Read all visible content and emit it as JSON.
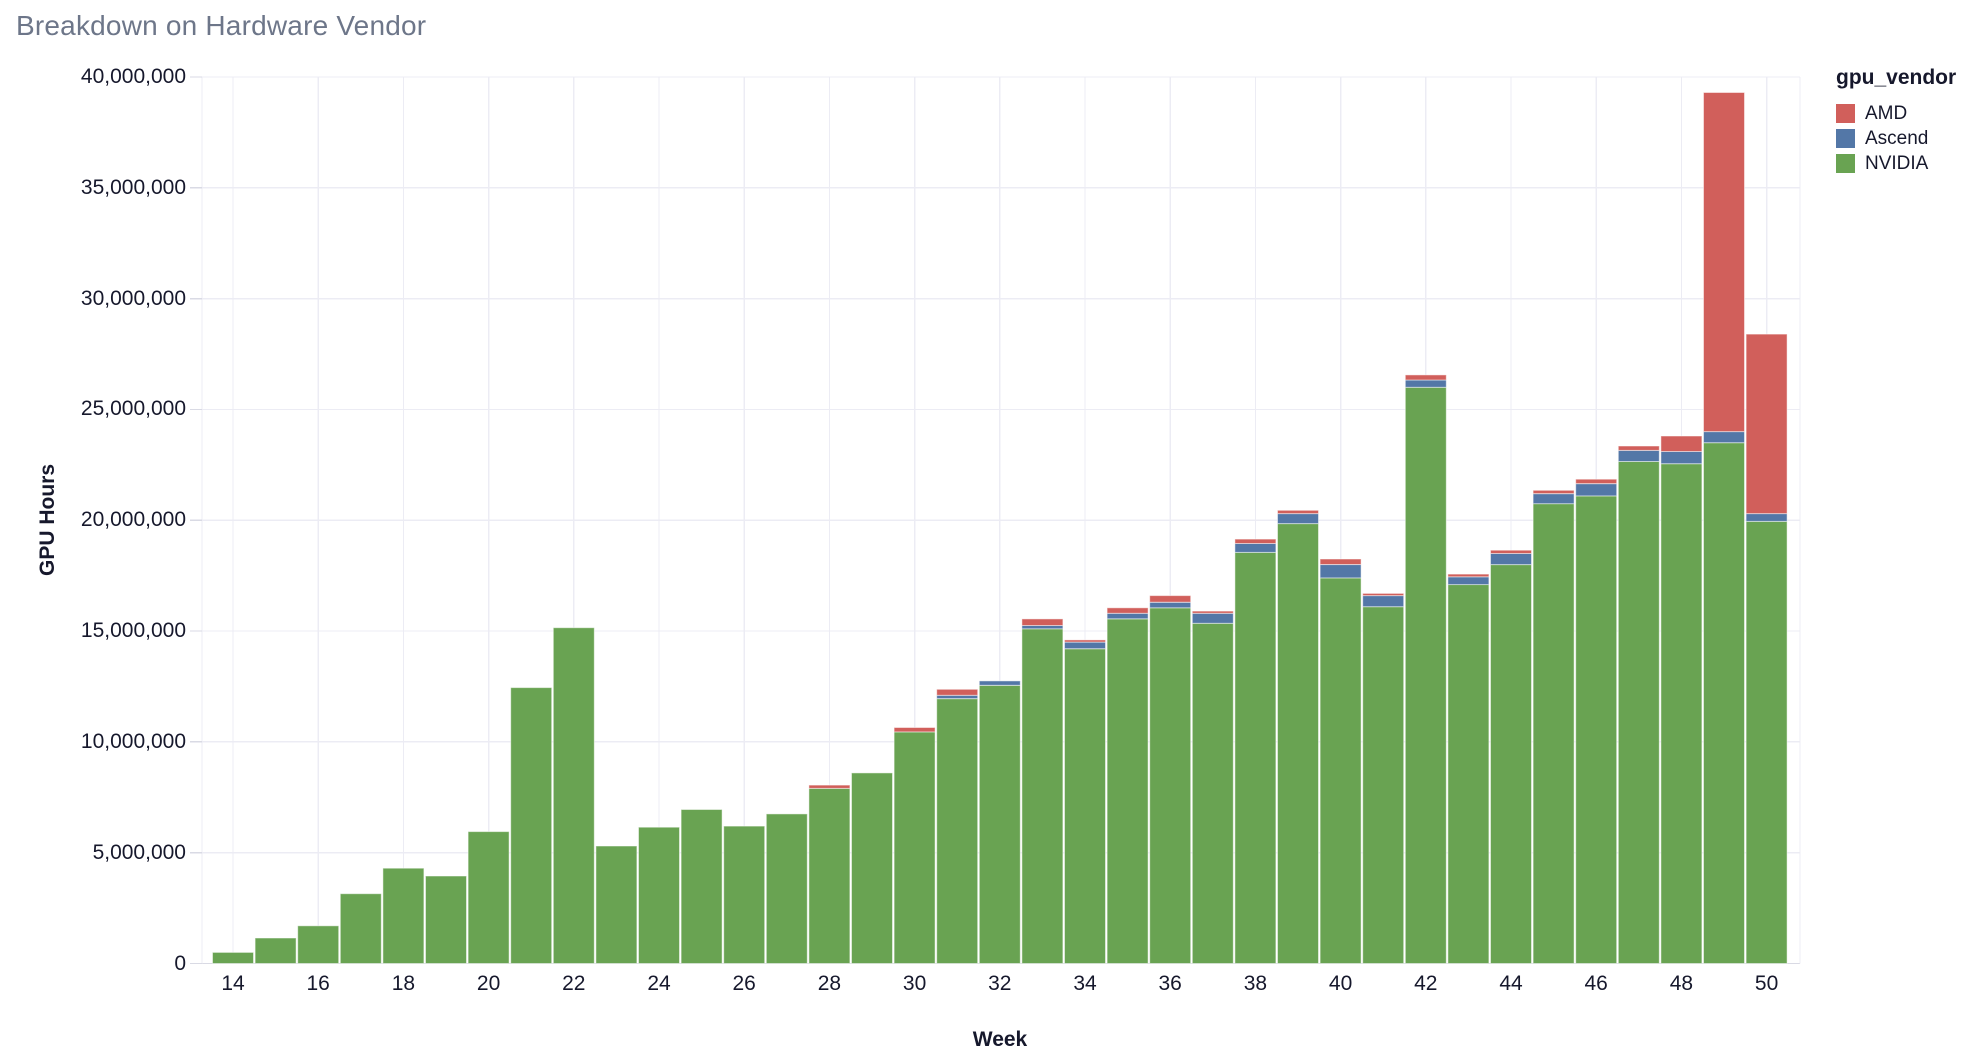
{
  "title": "Breakdown on Hardware Vendor",
  "legend": {
    "title": "gpu_vendor",
    "items": [
      {
        "label": "AMD",
        "color": "#d15f5b"
      },
      {
        "label": "Ascend",
        "color": "#5377a7"
      },
      {
        "label": "NVIDIA",
        "color": "#69a352"
      }
    ]
  },
  "colors": {
    "amd": "#d15f5b",
    "ascend": "#5377a7",
    "nvidia": "#69a352",
    "grid": "#ececf4",
    "axis_line": "#d9dae4",
    "tick_text": "#16182c",
    "title_text": "#6d7689",
    "bar_edge": "#ffffff"
  },
  "chart_data": {
    "type": "bar",
    "stacked": true,
    "title": "Breakdown on Hardware Vendor",
    "xlabel": "Week",
    "ylabel": "GPU Hours",
    "ylim": [
      0,
      40000000
    ],
    "grid": true,
    "legend_position": "right",
    "weeks": [
      14,
      15,
      16,
      17,
      18,
      19,
      20,
      21,
      22,
      23,
      24,
      25,
      26,
      27,
      28,
      29,
      30,
      31,
      32,
      33,
      34,
      35,
      36,
      37,
      38,
      39,
      40,
      41,
      42,
      43,
      44,
      45,
      46,
      47,
      48,
      49,
      50
    ],
    "series": [
      {
        "name": "NVIDIA",
        "color": "#69a352",
        "values": [
          500000,
          1150000,
          1700000,
          3150000,
          4300000,
          3950000,
          5950000,
          12450000,
          15150000,
          5300000,
          6150000,
          6950000,
          6200000,
          6750000,
          7900000,
          8600000,
          10450000,
          11950000,
          12550000,
          15100000,
          14200000,
          15550000,
          16050000,
          15350000,
          18550000,
          19850000,
          17400000,
          16100000,
          26000000,
          17100000,
          18000000,
          20750000,
          21100000,
          22650000,
          22550000,
          23500000,
          19950000
        ]
      },
      {
        "name": "Ascend",
        "color": "#5377a7",
        "values": [
          0,
          0,
          0,
          0,
          0,
          0,
          0,
          0,
          0,
          0,
          0,
          0,
          0,
          0,
          0,
          0,
          0,
          150000,
          200000,
          150000,
          300000,
          250000,
          250000,
          450000,
          400000,
          450000,
          600000,
          500000,
          330000,
          350000,
          500000,
          450000,
          550000,
          500000,
          550000,
          500000,
          350000
        ]
      },
      {
        "name": "AMD",
        "color": "#d15f5b",
        "values": [
          0,
          0,
          0,
          0,
          0,
          0,
          0,
          0,
          0,
          0,
          0,
          0,
          0,
          0,
          150000,
          0,
          200000,
          270000,
          0,
          300000,
          100000,
          250000,
          300000,
          100000,
          200000,
          150000,
          250000,
          100000,
          230000,
          120000,
          150000,
          150000,
          200000,
          200000,
          700000,
          15300000,
          8100000
        ]
      }
    ],
    "x_tick_weeks": [
      14,
      16,
      18,
      20,
      22,
      24,
      26,
      28,
      30,
      32,
      34,
      36,
      38,
      40,
      42,
      44,
      46,
      48,
      50
    ],
    "x_tick_labels": [
      "14",
      "16",
      "18",
      "20",
      "22",
      "24",
      "26",
      "28",
      "30",
      "32",
      "34",
      "36",
      "38",
      "40",
      "42",
      "44",
      "46",
      "48",
      "50"
    ],
    "y_tick_values": [
      0,
      5000000,
      10000000,
      15000000,
      20000000,
      25000000,
      30000000,
      35000000,
      40000000
    ],
    "y_tick_labels": [
      "0",
      "5,000,000",
      "10,000,000",
      "15,000,000",
      "20,000,000",
      "25,000,000",
      "30,000,000",
      "35,000,000",
      "40,000,000"
    ]
  }
}
